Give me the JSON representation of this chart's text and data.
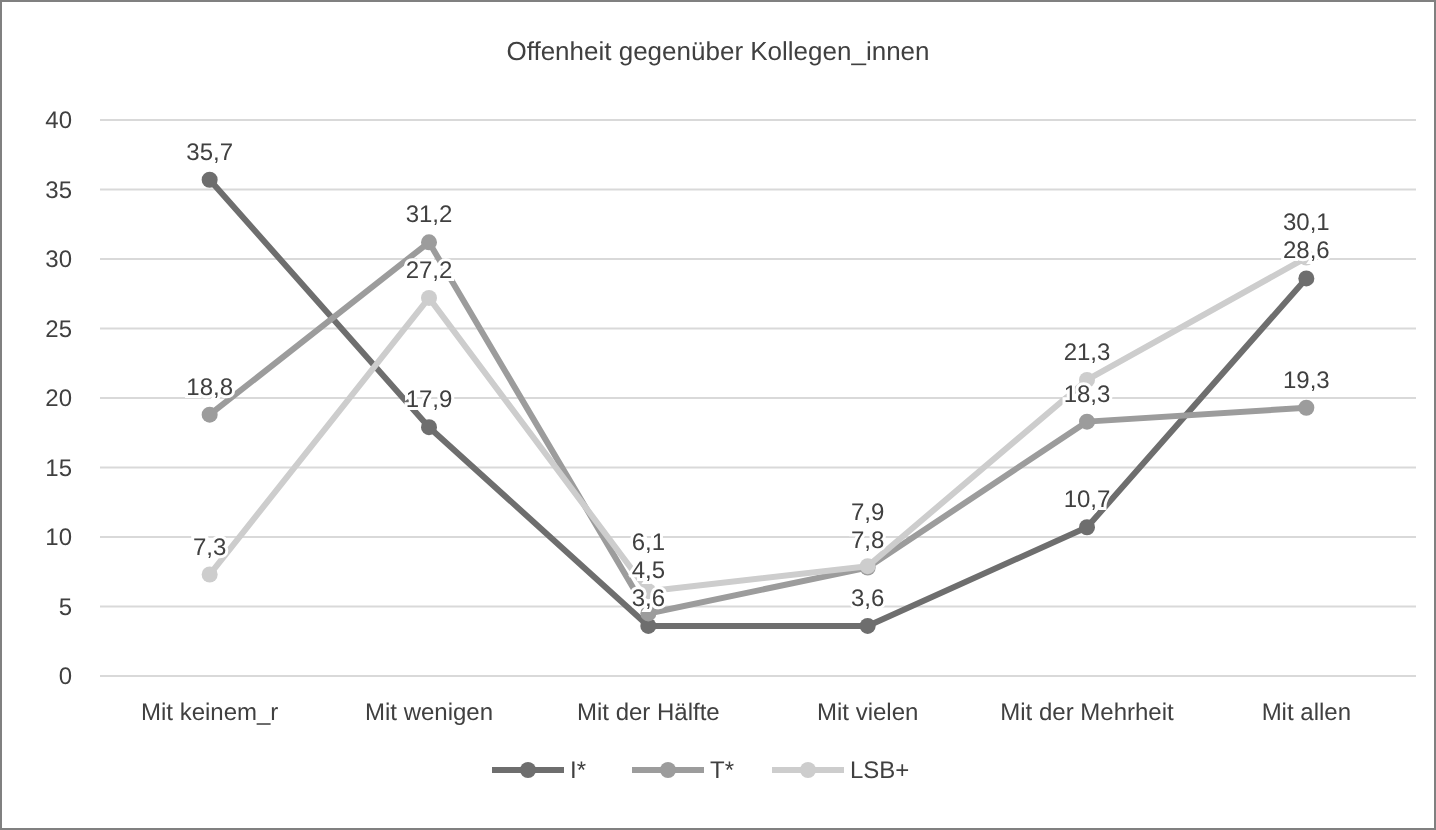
{
  "chart_data": {
    "type": "line",
    "title": "Offenheit gegenüber Kollegen_innen",
    "categories": [
      "Mit keinem_r",
      "Mit wenigen",
      "Mit der Hälfte",
      "Mit vielen",
      "Mit der Mehrheit",
      "Mit allen"
    ],
    "series": [
      {
        "name": "I*",
        "color": "#6e6e6e",
        "values": [
          35.7,
          17.9,
          3.6,
          3.6,
          10.7,
          28.6
        ],
        "value_labels": [
          "35,7",
          "17,9",
          "3,6",
          "3,6",
          "10,7",
          "28,6"
        ]
      },
      {
        "name": "T*",
        "color": "#9c9c9c",
        "values": [
          18.8,
          31.2,
          4.5,
          7.8,
          18.3,
          19.3
        ],
        "value_labels": [
          "18,8",
          "31,2",
          "4,5",
          "7,8",
          "18,3",
          "19,3"
        ]
      },
      {
        "name": "LSB+",
        "color": "#cdcdcd",
        "values": [
          7.3,
          27.2,
          6.1,
          7.9,
          21.3,
          30.1
        ],
        "value_labels": [
          "7,3",
          "27,2",
          "6,1",
          "7,9",
          "21,3",
          "30,1"
        ]
      }
    ],
    "ylim": [
      0,
      40
    ],
    "yticks": [
      0,
      5,
      10,
      15,
      20,
      25,
      30,
      35,
      40
    ],
    "grid": "y",
    "legend": "bottom",
    "marker": "circle",
    "line_style": "solid"
  }
}
